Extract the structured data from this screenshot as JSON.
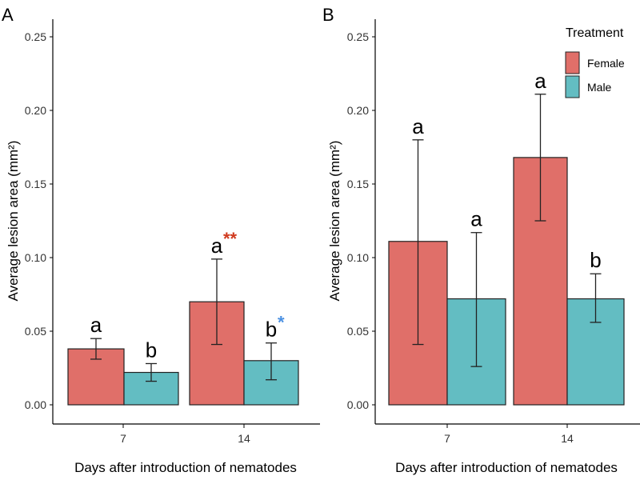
{
  "colors": {
    "Female": "#E06F69",
    "Male": "#63BDC2",
    "sig_female": "#D03A1E",
    "sig_male": "#4A90E2"
  },
  "chart_data": [
    {
      "type": "bar",
      "panel_label": "A",
      "xlabel": "Days after introduction of nematodes",
      "ylabel": "Average lesion area (mm²)",
      "categories": [
        "7",
        "14"
      ],
      "ylim": [
        0,
        0.25
      ],
      "yticks": [
        "0.00",
        "0.05",
        "0.10",
        "0.15",
        "0.20",
        "0.25"
      ],
      "grid": false,
      "series": [
        {
          "name": "Female",
          "values": [
            0.038,
            0.07
          ],
          "err_low": [
            0.031,
            0.041
          ],
          "err_high": [
            0.045,
            0.099
          ],
          "letters": [
            "a",
            "a"
          ],
          "stars": [
            "",
            "**"
          ]
        },
        {
          "name": "Male",
          "values": [
            0.022,
            0.03
          ],
          "err_low": [
            0.016,
            0.017
          ],
          "err_high": [
            0.028,
            0.042
          ],
          "letters": [
            "b",
            "b"
          ],
          "stars": [
            "",
            "*"
          ]
        }
      ]
    },
    {
      "type": "bar",
      "panel_label": "B",
      "xlabel": "Days after introduction of nematodes",
      "ylabel": "Average lesion area (mm²)",
      "categories": [
        "7",
        "14"
      ],
      "ylim": [
        0,
        0.25
      ],
      "yticks": [
        "0.00",
        "0.05",
        "0.10",
        "0.15",
        "0.20",
        "0.25"
      ],
      "grid": false,
      "legend": {
        "title": "Treatment",
        "entries": [
          "Female",
          "Male"
        ],
        "position": "top-right"
      },
      "series": [
        {
          "name": "Female",
          "values": [
            0.111,
            0.168
          ],
          "err_low": [
            0.041,
            0.125
          ],
          "err_high": [
            0.18,
            0.211
          ],
          "letters": [
            "a",
            "a"
          ],
          "stars": [
            "",
            ""
          ]
        },
        {
          "name": "Male",
          "values": [
            0.072,
            0.072
          ],
          "err_low": [
            0.026,
            0.056
          ],
          "err_high": [
            0.117,
            0.089
          ],
          "letters": [
            "a",
            "b"
          ],
          "stars": [
            "",
            ""
          ]
        }
      ]
    }
  ]
}
